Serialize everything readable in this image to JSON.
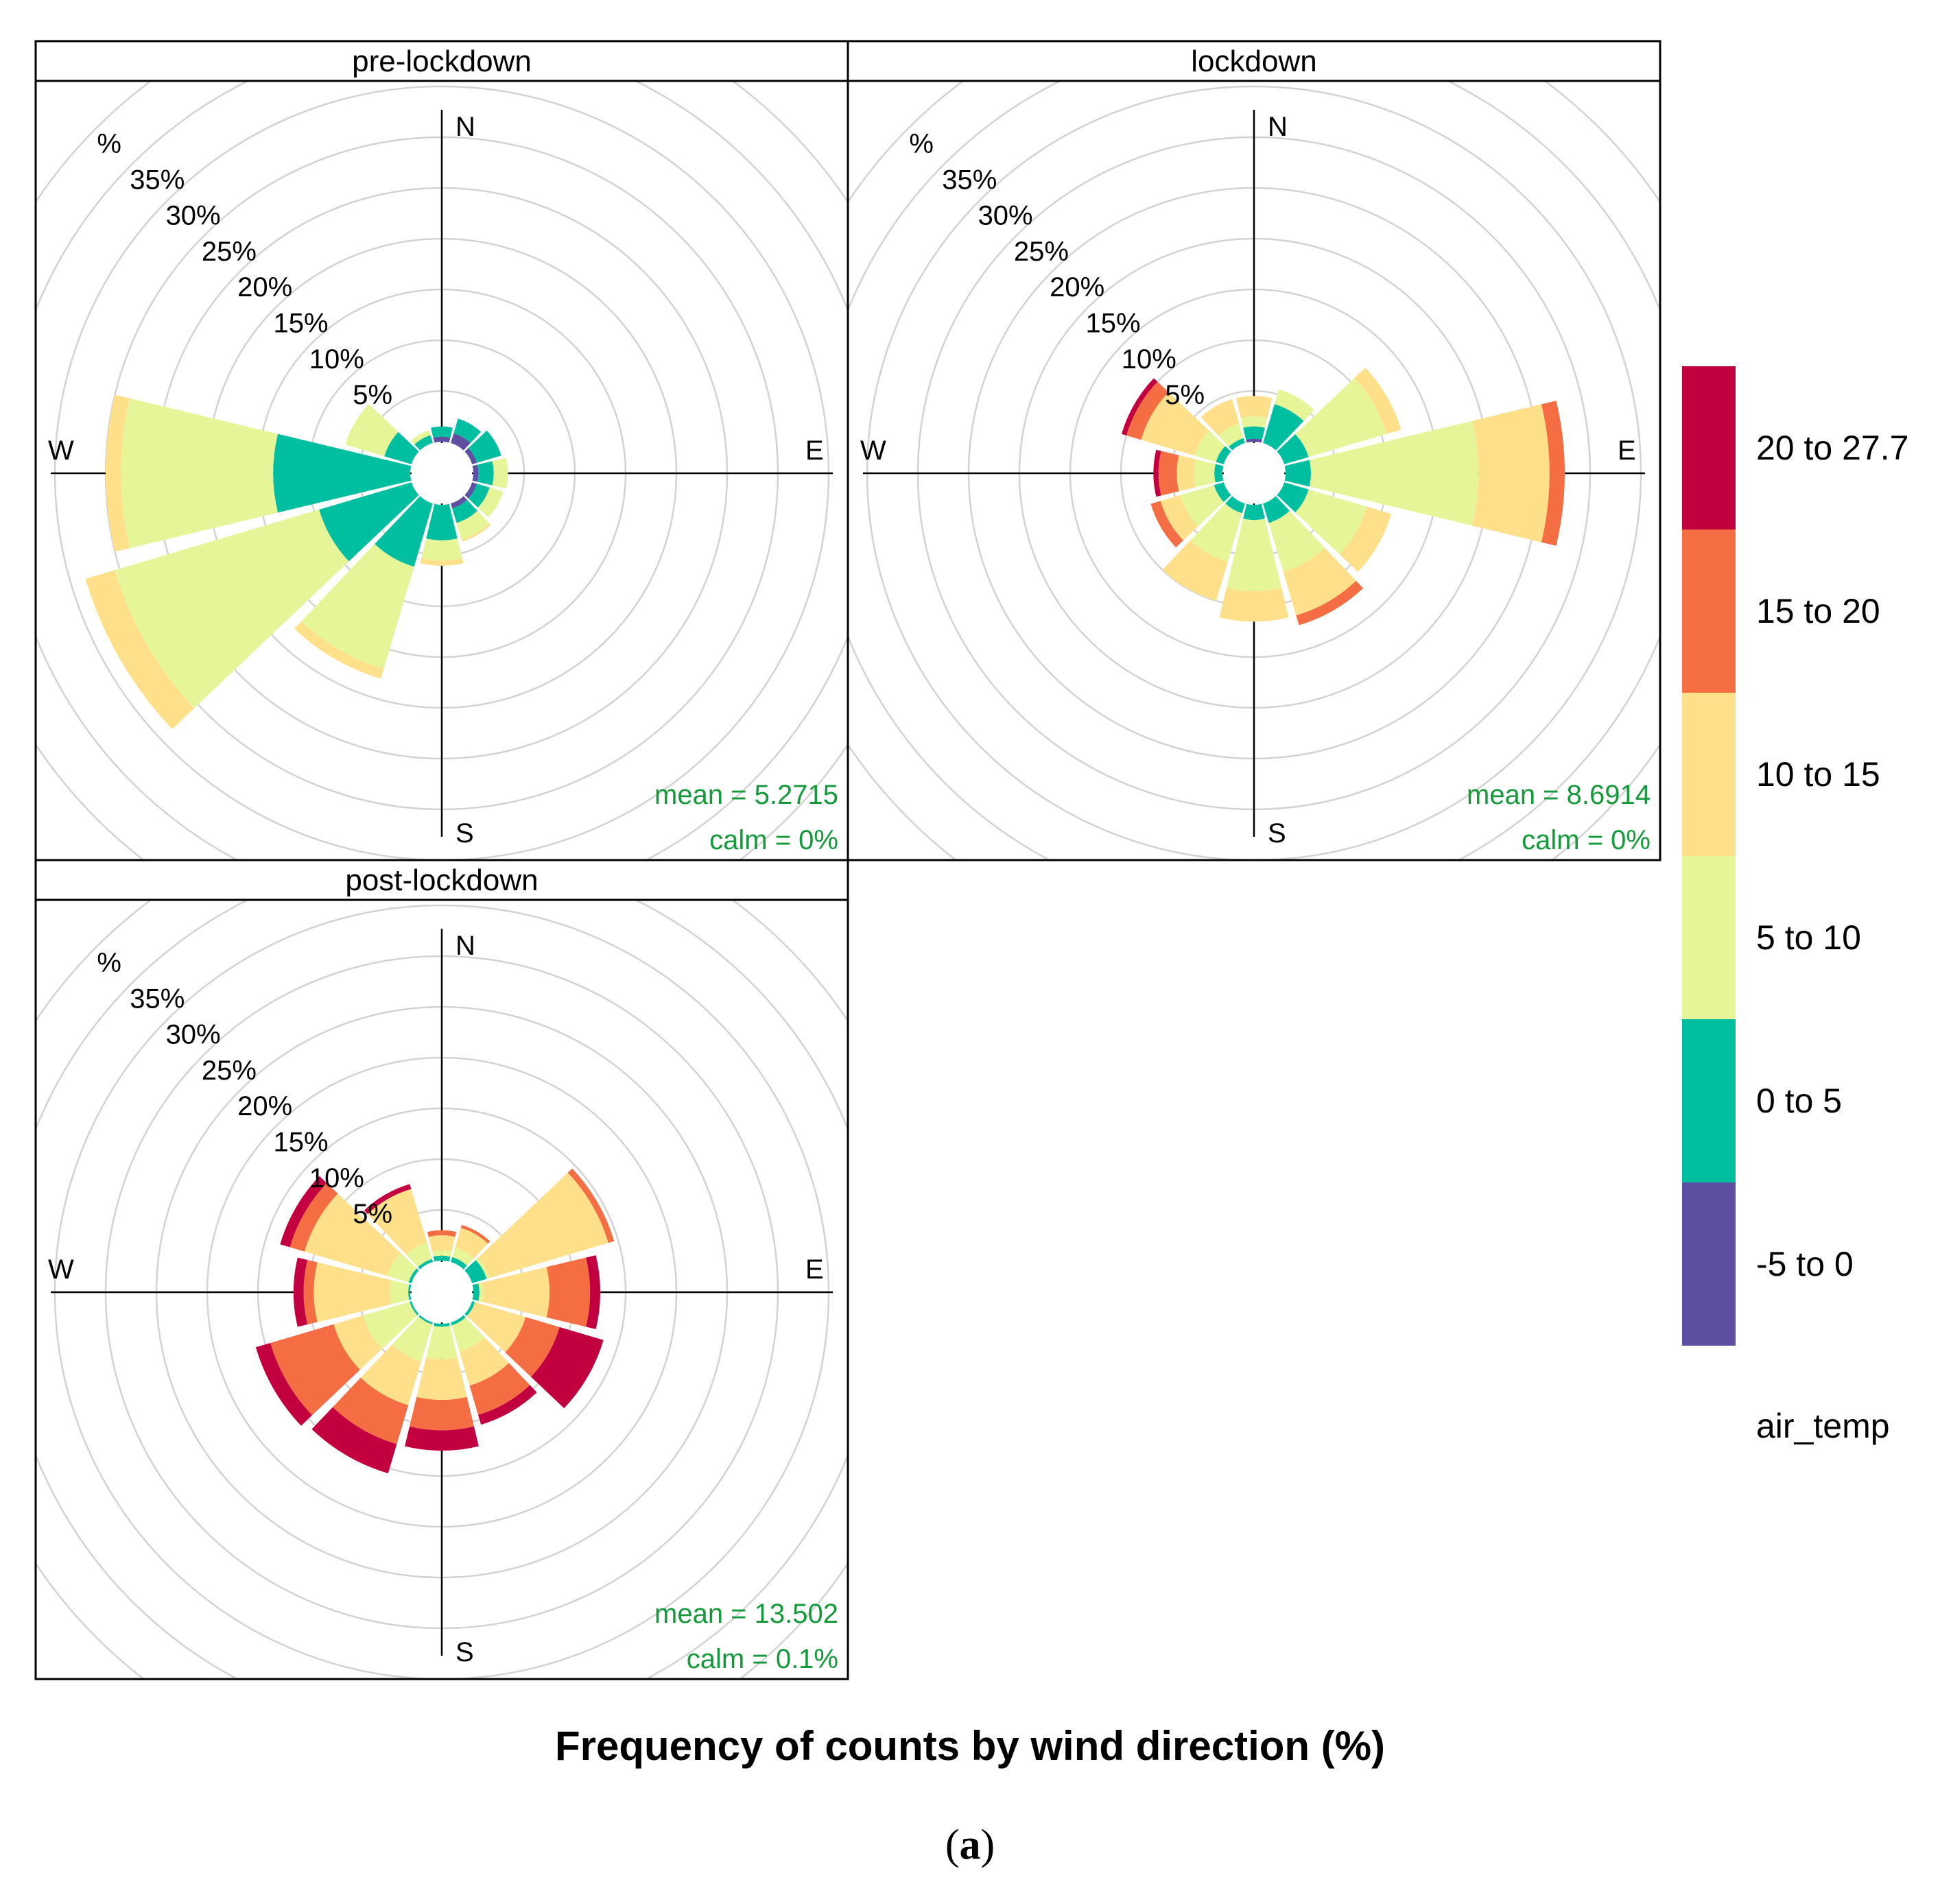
{
  "chart_data": {
    "type": "windrose",
    "title": "Frequency of counts by wind direction (%)",
    "caption_prefix": "(",
    "caption_letter": "a",
    "caption_suffix": ")",
    "variable": "air_temp",
    "directions": [
      0,
      30,
      60,
      90,
      120,
      150,
      180,
      210,
      240,
      270,
      300,
      330
    ],
    "direction_labels": {
      "N": "N",
      "E": "E",
      "S": "S",
      "W": "W"
    },
    "ring_values": [
      5,
      10,
      15,
      20,
      25,
      30,
      35
    ],
    "ring_labels": [
      "5%",
      "10%",
      "15%",
      "20%",
      "25%",
      "30%",
      "35%"
    ],
    "ring_cut_label": "%",
    "bins": [
      {
        "label": "-5 to 0",
        "color": "#5e4fa2"
      },
      {
        "label": "0 to 5",
        "color": "#00bfa0"
      },
      {
        "label": "5 to 10",
        "color": "#e6f598"
      },
      {
        "label": "10 to 15",
        "color": "#fee08b"
      },
      {
        "label": "15 to 20",
        "color": "#f46d43"
      },
      {
        "label": "20 to 27.7",
        "color": "#c2003f"
      }
    ],
    "panels": [
      {
        "name": "pre-lockdown",
        "mean": "mean = 5.2715",
        "calm": "calm = 0%",
        "cumulative": [
          [
            0.5,
            1.5,
            1.5,
            1.5,
            1.5,
            1.5
          ],
          [
            1.0,
            2.5,
            2.5,
            2.5,
            2.5,
            2.5
          ],
          [
            0.5,
            3.0,
            3.0,
            3.0,
            3.0,
            3.0
          ],
          [
            0.5,
            2.0,
            3.4,
            3.4,
            3.4,
            3.4
          ],
          [
            0.5,
            1.8,
            3.2,
            3.2,
            3.2,
            3.2
          ],
          [
            0.5,
            2.0,
            3.7,
            3.9,
            3.9,
            3.9
          ],
          [
            0,
            3.5,
            5.5,
            6.0,
            6.0,
            6.0
          ],
          [
            0,
            6.5,
            17.0,
            18.0,
            18.0,
            18.0
          ],
          [
            0,
            9.5,
            30.5,
            33.5,
            33.5,
            33.5
          ],
          [
            0,
            13.5,
            28.5,
            30.0,
            30.0,
            30.0
          ],
          [
            0,
            2.8,
            6.8,
            6.8,
            6.8,
            6.8
          ],
          [
            0,
            0.8,
            1.3,
            1.3,
            1.3,
            1.3
          ]
        ]
      },
      {
        "name": "lockdown",
        "mean": "mean = 8.6914",
        "calm": "calm = 0%",
        "cumulative": [
          [
            0.3,
            1.5,
            2.5,
            4.5,
            4.5,
            4.5
          ],
          [
            0,
            4.0,
            5.5,
            5.5,
            5.5,
            5.5
          ],
          [
            0,
            2.5,
            10.5,
            12.0,
            12.0,
            12.0
          ],
          [
            0,
            2.5,
            19.0,
            26.0,
            27.5,
            27.5
          ],
          [
            0,
            2.5,
            8.5,
            11.0,
            11.0,
            11.0
          ],
          [
            0,
            2.0,
            7.0,
            11.5,
            12.5,
            12.5
          ],
          [
            0,
            1.5,
            8.5,
            11.5,
            11.5,
            11.5
          ],
          [
            0,
            1.0,
            6.0,
            10.0,
            10.0,
            10.0
          ],
          [
            0,
            1.0,
            4.5,
            6.5,
            7.5,
            7.5
          ],
          [
            0,
            0.8,
            2.8,
            4.5,
            6.3,
            6.8
          ],
          [
            0,
            0.8,
            3.0,
            8.5,
            10.0,
            10.5
          ],
          [
            0,
            0.5,
            2.0,
            4.5,
            4.5,
            4.5
          ]
        ]
      },
      {
        "name": "post-lockdown",
        "mean": "mean = 13.502",
        "calm": "calm = 0.1%",
        "cumulative": [
          [
            0,
            0.5,
            1.0,
            2.5,
            3.0,
            3.0
          ],
          [
            0,
            0.5,
            1.5,
            3.5,
            3.8,
            3.8
          ],
          [
            0,
            1.5,
            1.8,
            14.0,
            14.6,
            14.6
          ],
          [
            0,
            0.6,
            1.0,
            7.5,
            11.5,
            12.5
          ],
          [
            0,
            0.3,
            0.3,
            5.5,
            9.0,
            13.5
          ],
          [
            0,
            0.3,
            3.0,
            6.5,
            9.5,
            10.5
          ],
          [
            0,
            0.3,
            3.5,
            7.5,
            10.5,
            12.5
          ],
          [
            0,
            0.2,
            4.0,
            8.5,
            12.5,
            15.5
          ],
          [
            0,
            0.2,
            5.0,
            8.0,
            14.5,
            16.0
          ],
          [
            0,
            0.2,
            2.0,
            9.5,
            10.5,
            11.5
          ],
          [
            0,
            0.3,
            2.5,
            11.0,
            12.5,
            13.5
          ],
          [
            0,
            0.3,
            2.0,
            7.5,
            7.5,
            8.0
          ]
        ]
      }
    ]
  }
}
